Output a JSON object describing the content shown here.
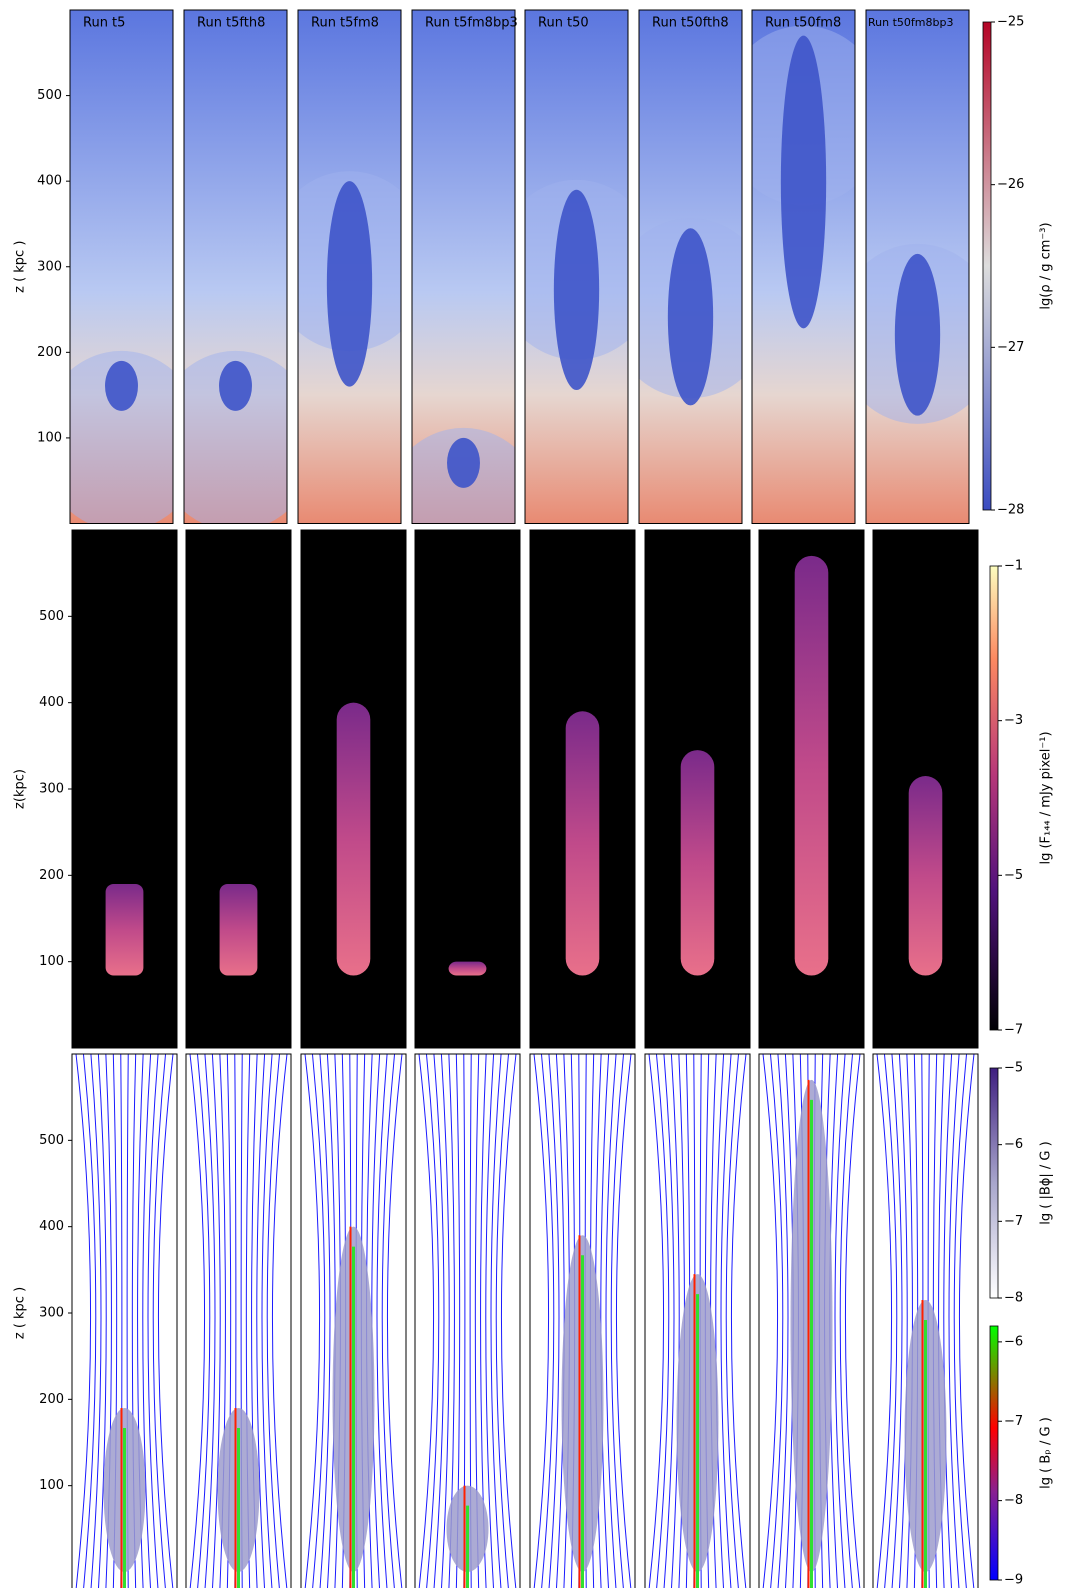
{
  "rows": [
    {
      "ylabel": "z ( kpc )",
      "ylim": [
        0,
        600
      ],
      "yticks": [
        100,
        200,
        300,
        400,
        500
      ],
      "panels": [
        {
          "title": "Run t5",
          "jet_top": 190
        },
        {
          "title": "Run t5fth8",
          "jet_top": 190
        },
        {
          "title": "Run t5fm8",
          "jet_top": 400
        },
        {
          "title": "Run t5fm8bp3",
          "jet_top": 100
        },
        {
          "title": "Run t50",
          "jet_top": 390
        },
        {
          "title": "Run t50fth8",
          "jet_top": 345
        },
        {
          "title": "Run t50fm8",
          "jet_top": 570
        },
        {
          "title": "Run t50fm8bp3",
          "jet_top": 315
        }
      ],
      "colorbars": [
        {
          "label": "lg(ρ / g cm⁻³)",
          "lim": [
            -28,
            -25
          ],
          "ticks": [
            {
              "value": -25,
              "label": "−25"
            },
            {
              "value": -26,
              "label": "−26"
            },
            {
              "value": -27,
              "label": "−27"
            },
            {
              "value": -28,
              "label": "−28"
            }
          ]
        }
      ]
    },
    {
      "ylabel": "z(kpc)",
      "ylim": [
        0,
        600
      ],
      "yticks": [
        100,
        200,
        300,
        400,
        500
      ],
      "colorbars": [
        {
          "label": "lg (F₁₄₄ / mJy pixel⁻¹)",
          "lim": [
            -7,
            -1
          ],
          "ticks": [
            {
              "value": -1,
              "label": "−1"
            },
            {
              "value": -3,
              "label": "−3"
            },
            {
              "value": -5,
              "label": "−5"
            },
            {
              "value": -7,
              "label": "−7"
            }
          ]
        }
      ]
    },
    {
      "ylabel": "z ( kpc )",
      "ylim": [
        0,
        600
      ],
      "yticks": [
        100,
        200,
        300,
        400,
        500
      ],
      "colorbars": [
        {
          "label": "lg ( |Bϕ| / G )",
          "lim": [
            -8,
            -5
          ],
          "ticks": [
            {
              "value": -5,
              "label": "−5"
            },
            {
              "value": -6,
              "label": "−6"
            },
            {
              "value": -7,
              "label": "−7"
            },
            {
              "value": -8,
              "label": "−8"
            }
          ]
        },
        {
          "label": "lg ( Bₚ / G )",
          "lim": [
            -9,
            -5.8
          ],
          "ticks": [
            {
              "value": -6,
              "label": "−6"
            },
            {
              "value": -7,
              "label": "−7"
            },
            {
              "value": -8,
              "label": "−8"
            },
            {
              "value": -9,
              "label": "−9"
            }
          ]
        }
      ]
    }
  ]
}
